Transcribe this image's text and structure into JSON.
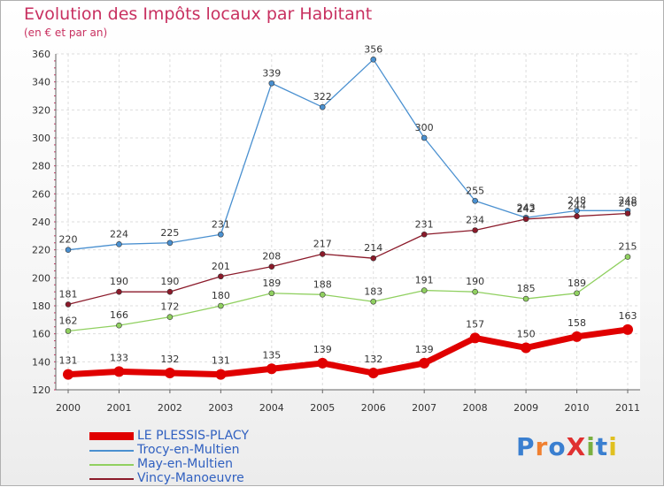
{
  "header": {
    "title": "Evolution des Impôts locaux par Habitant",
    "subtitle": "(en € et par an)"
  },
  "logo": {
    "text": "ProXiti",
    "colors": [
      "#3a7fd0",
      "#f08030",
      "#3a7fd0",
      "#e03030",
      "#7ab040",
      "#3a7fd0",
      "#e0c020"
    ]
  },
  "chart_data": {
    "type": "line",
    "title": "Evolution des Impôts locaux par Habitant",
    "subtitle": "(en € et par an)",
    "xlabel": "",
    "ylabel": "",
    "x": [
      "2000",
      "2001",
      "2002",
      "2003",
      "2004",
      "2005",
      "2006",
      "2007",
      "2008",
      "2009",
      "2010",
      "2011"
    ],
    "ylim": [
      120,
      360
    ],
    "yticks": [
      120,
      140,
      160,
      180,
      200,
      220,
      240,
      260,
      280,
      300,
      320,
      340,
      360
    ],
    "grid": true,
    "legend_position": "bottom-left",
    "series": [
      {
        "name": "Trocy-en-Multien",
        "color": "#4a90d0",
        "values": [
          220,
          224,
          225,
          231,
          339,
          322,
          356,
          300,
          255,
          243,
          248,
          248
        ]
      },
      {
        "name": "Vincy-Manoeuvre",
        "color": "#8b1a2a",
        "values": [
          181,
          190,
          190,
          201,
          208,
          217,
          214,
          231,
          234,
          242,
          244,
          246
        ]
      },
      {
        "name": "May-en-Multien",
        "color": "#90d060",
        "values": [
          162,
          166,
          172,
          180,
          189,
          188,
          183,
          191,
          190,
          185,
          189,
          215
        ]
      },
      {
        "name": "LE PLESSIS-PLACY",
        "color": "#e00000",
        "values": [
          131,
          133,
          132,
          131,
          135,
          139,
          132,
          139,
          157,
          150,
          158,
          163
        ]
      }
    ],
    "legend": [
      {
        "name": "LE PLESSIS-PLACY",
        "color": "#e00000"
      },
      {
        "name": "Trocy-en-Multien",
        "color": "#4a90d0"
      },
      {
        "name": "May-en-Multien",
        "color": "#90d060"
      },
      {
        "name": "Vincy-Manoeuvre",
        "color": "#8b1a2a"
      }
    ]
  }
}
